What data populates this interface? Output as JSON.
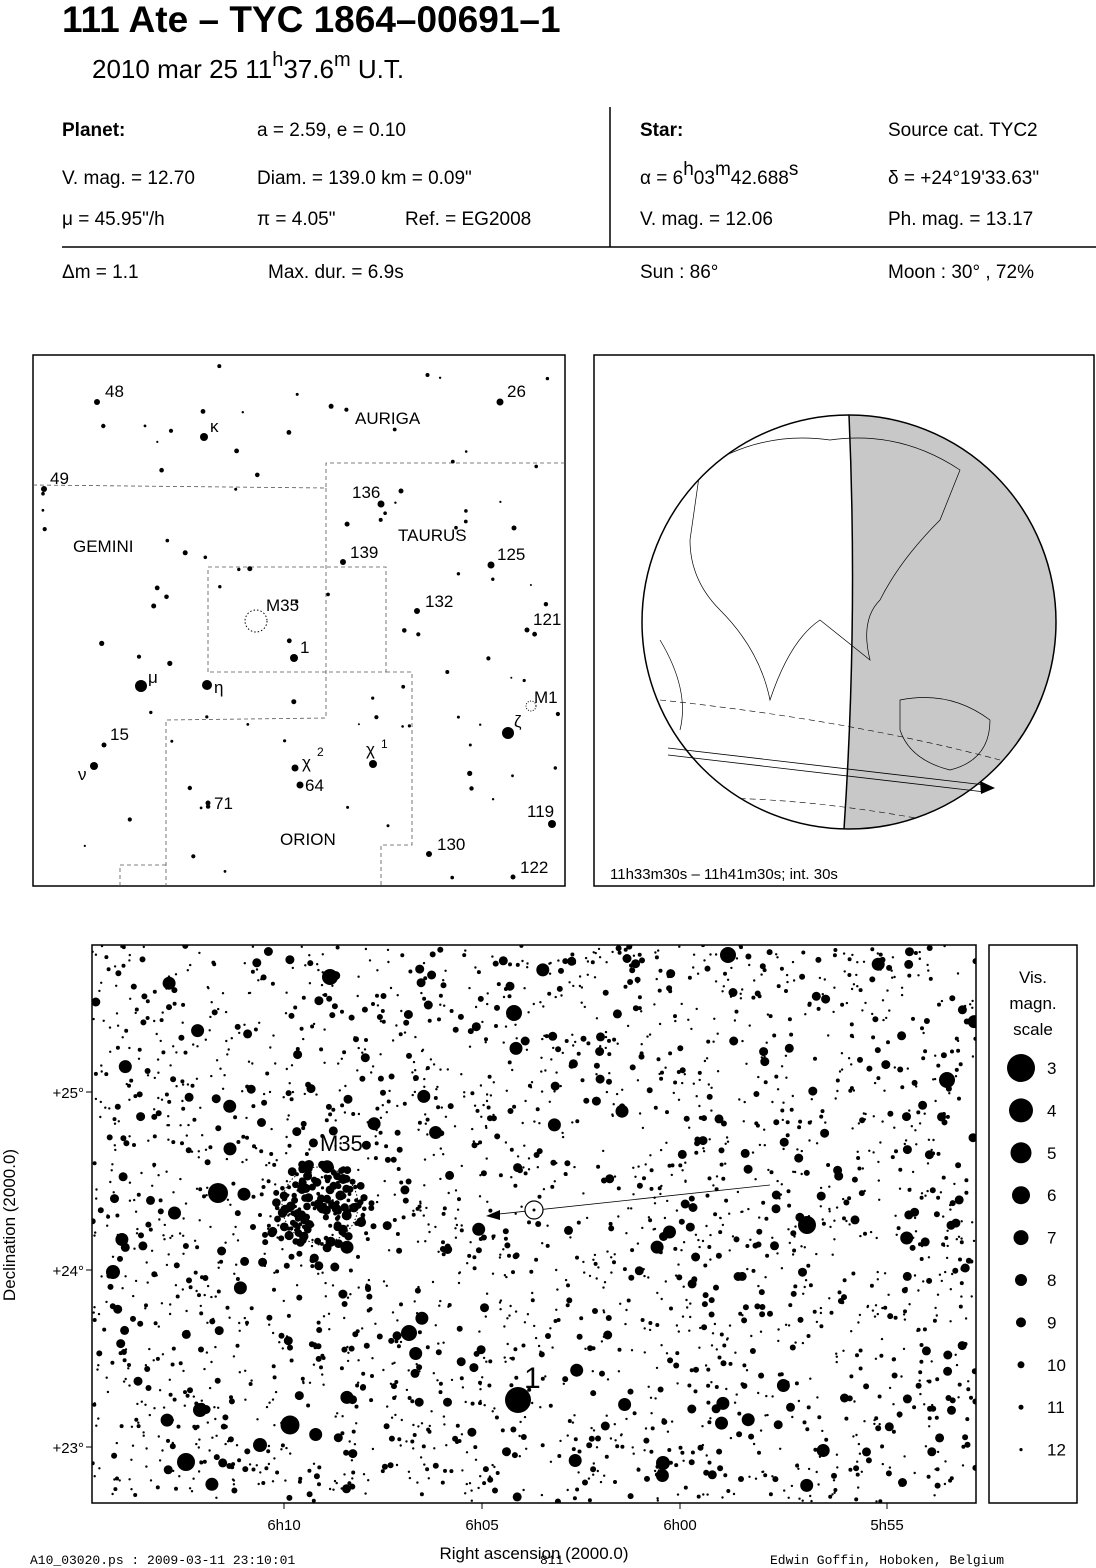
{
  "header": {
    "title": "111 Ate  –  TYC 1864–00691–1",
    "date": "2010 mar 25  11",
    "date_h": "h",
    "date_min": "37.6",
    "date_m": "m",
    "date_ut": " U.T."
  },
  "planet": {
    "label": "Planet:",
    "orbit": "a = 2.59, e = 0.10",
    "vmag": "V. mag. = 12.70",
    "diam": "Diam. = 139.0 km = 0.09\"",
    "mu": "μ =  45.95\"/h",
    "pi": "π =  4.05\"",
    "ref": "Ref. = EG2008"
  },
  "star": {
    "label": "Star:",
    "source": "Source cat.  TYC2",
    "alpha": "α =  6",
    "alpha_h": "h",
    "alpha_min": "03",
    "alpha_m": "m",
    "alpha_sec": "42.688",
    "alpha_s": "s",
    "delta": "δ = +24°19'33.63\"",
    "vmag": "V. mag. = 12.06",
    "phmag": "Ph. mag. = 13.17"
  },
  "event": {
    "dm": "Δm = 1.1",
    "maxdur": "Max. dur. = 6.9s",
    "sun": "Sun :  86°",
    "moon": "Moon :  30° , 72%"
  },
  "finder": {
    "labels": [
      "48",
      "26",
      "κ",
      "AURIGA",
      "49",
      "136",
      "GEMINI",
      "TAURUS",
      "139",
      "125",
      "M35",
      "132",
      "121",
      "1",
      "μ",
      "η",
      "M1",
      "ζ",
      "15",
      "χ",
      "2",
      "χ",
      "1",
      "64",
      "ν",
      "71",
      "119",
      "ORION",
      "130",
      "122"
    ]
  },
  "globe": {
    "caption": "11h33m30s – 11h41m30s; int. 30s"
  },
  "chart": {
    "yticks": [
      "+25°",
      "+24°",
      "+23°"
    ],
    "xticks": [
      "6h10",
      "6h05",
      "6h00",
      "5h55"
    ],
    "xlabel": "Right ascension (2000.0)",
    "ylabel": "Declination (2000.0)",
    "m35": "M35",
    "star1": "1",
    "scale_title": [
      "Vis.",
      "magn.",
      "scale"
    ],
    "scale": [
      3,
      4,
      5,
      6,
      7,
      8,
      9,
      10,
      11,
      12
    ]
  },
  "footer": {
    "file": "A10_03020.ps : 2009-03-11 23:10:01",
    "page": "811",
    "author": "Edwin Goffin, Hoboken, Belgium"
  }
}
